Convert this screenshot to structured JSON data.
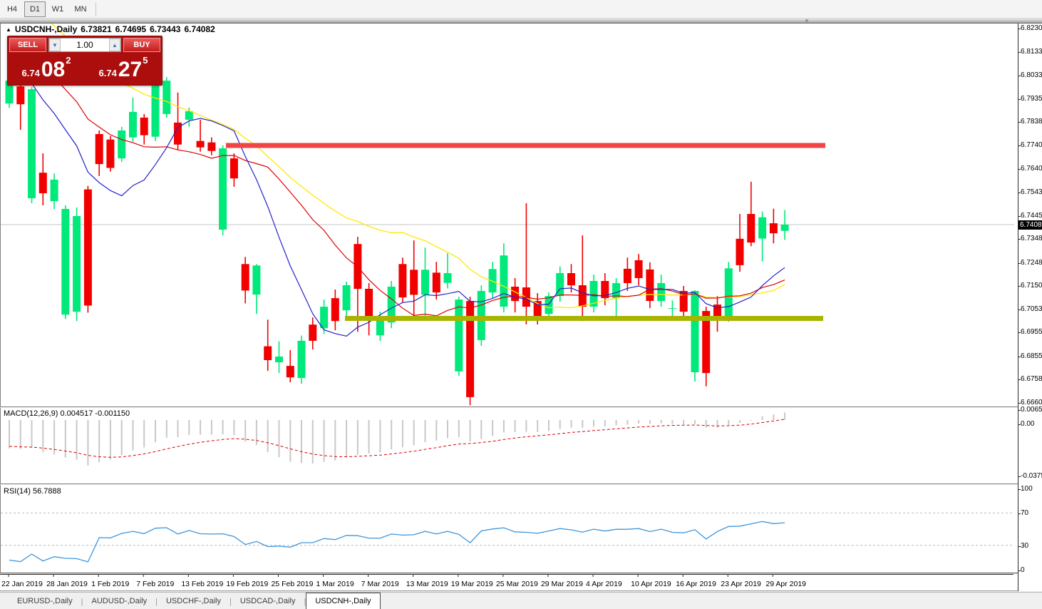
{
  "toolbar": {
    "timeframes": [
      {
        "label": "H4",
        "active": false
      },
      {
        "label": "D1",
        "active": true
      },
      {
        "label": "W1",
        "active": false
      },
      {
        "label": "MN",
        "active": false
      }
    ]
  },
  "chart": {
    "title_symbol": "USDCNH-,Daily",
    "ohlc": {
      "open": "6.73821",
      "high": "6.74695",
      "low": "6.73443",
      "close": "6.74082"
    },
    "current_price": "6.74082",
    "trade_panel": {
      "sell_label": "SELL",
      "buy_label": "BUY",
      "volume": "1.00",
      "sell_price_small": "6.74",
      "sell_price_big": "08",
      "sell_price_sup": "2",
      "buy_price_small": "6.74",
      "buy_price_big": "27",
      "buy_price_sup": "5"
    },
    "price_axis_labels": [
      "6.82305",
      "6.81330",
      "6.80330",
      "6.79355",
      "6.78380",
      "6.77405",
      "6.76405",
      "6.75430",
      "6.74455",
      "6.73480",
      "6.72480",
      "6.71505",
      "6.70530",
      "6.69555",
      "6.68555",
      "6.67580",
      "6.66605"
    ],
    "colors": {
      "candle_up": "#00E97A",
      "candle_down": "#F20000",
      "ma_fast_blue": "#2222CC",
      "ma_mid_red": "#DD0000",
      "ma_slow_yellow": "#FFE800",
      "resistance_band": "#F04545",
      "support_band": "#A8B400",
      "macd_bar": "#C8C8C8",
      "macd_signal": "#DD0000",
      "rsi_line": "#3E96DC",
      "current_price_line": "#C4C4C4"
    }
  },
  "chart_data": {
    "type": "candlestick",
    "symbol": "USDCNH-,Daily",
    "x_tick_labels": [
      "22 Jan 2019",
      "28 Jan 2019",
      "1 Feb 2019",
      "7 Feb 2019",
      "13 Feb 2019",
      "19 Feb 2019",
      "25 Feb 2019",
      "1 Mar 2019",
      "7 Mar 2019",
      "13 Mar 2019",
      "19 Mar 2019",
      "25 Mar 2019",
      "29 Mar 2019",
      "4 Apr 2019",
      "10 Apr 2019",
      "16 Apr 2019",
      "23 Apr 2019",
      "29 Apr 2019"
    ],
    "y_range": [
      6.66605,
      6.82305
    ],
    "levels": {
      "resistance": 6.774,
      "support": 6.7015
    },
    "candles": [
      [
        6.7916,
        6.8018,
        6.7898,
        6.8012
      ],
      [
        6.7988,
        6.7997,
        6.7806,
        6.7913
      ],
      [
        6.7519,
        6.7985,
        6.7498,
        6.7976
      ],
      [
        6.7626,
        6.7707,
        6.7489,
        6.754
      ],
      [
        6.7507,
        6.7623,
        6.7474,
        6.7597
      ],
      [
        6.7031,
        6.7489,
        6.7013,
        6.7474
      ],
      [
        6.7043,
        6.748,
        6.7004,
        6.7444
      ],
      [
        6.7556,
        6.7571,
        6.7039,
        6.7069
      ],
      [
        6.7788,
        6.7803,
        6.7612,
        6.7662
      ],
      [
        6.7765,
        6.778,
        6.7631,
        6.7646
      ],
      [
        6.7686,
        6.7818,
        6.7671,
        6.7803
      ],
      [
        6.7774,
        6.7941,
        6.7756,
        6.7881
      ],
      [
        6.7857,
        6.7872,
        6.7744,
        6.7783
      ],
      [
        6.7777,
        6.8009,
        6.7759,
        6.7991
      ],
      [
        6.7872,
        6.8027,
        6.7857,
        6.8012
      ],
      [
        6.7836,
        6.7962,
        6.7722,
        6.7744
      ],
      [
        6.7848,
        6.7899,
        6.7818,
        6.7884
      ],
      [
        6.7759,
        6.7848,
        6.7714,
        6.7732
      ],
      [
        6.7753,
        6.7774,
        6.7699,
        6.7717
      ],
      [
        6.7387,
        6.774,
        6.7363,
        6.7728
      ],
      [
        6.7686,
        6.7707,
        6.7567,
        6.7602
      ],
      [
        6.7243,
        6.7273,
        6.7078,
        6.7132
      ],
      [
        6.7115,
        6.7243,
        6.7034,
        6.7237
      ],
      [
        6.6898,
        6.701,
        6.6795,
        6.684
      ],
      [
        6.6831,
        6.6919,
        6.6786,
        6.6855
      ],
      [
        6.6816,
        6.6882,
        6.6747,
        6.6768
      ],
      [
        6.6765,
        6.6943,
        6.6741,
        6.6921
      ],
      [
        6.6989,
        6.7019,
        6.6885,
        6.6921
      ],
      [
        6.6974,
        6.7094,
        6.695,
        6.7064
      ],
      [
        6.71,
        6.7136,
        6.6965,
        6.7004
      ],
      [
        6.7049,
        6.7169,
        6.7025,
        6.7154
      ],
      [
        6.7327,
        6.7357,
        6.6959,
        6.7139
      ],
      [
        6.7139,
        6.7163,
        6.6944,
        6.7019
      ],
      [
        6.6944,
        6.7043,
        6.692,
        6.7019
      ],
      [
        6.6998,
        6.7172,
        6.6974,
        6.7148
      ],
      [
        6.7243,
        6.727,
        6.7082,
        6.7103
      ],
      [
        6.7219,
        6.7342,
        6.7024,
        6.7114
      ],
      [
        6.7114,
        6.7312,
        6.7024,
        6.7219
      ],
      [
        6.7207,
        6.7252,
        6.7094,
        6.7124
      ],
      [
        6.7164,
        6.7288,
        6.7141,
        6.7205
      ],
      [
        6.6793,
        6.7106,
        6.6775,
        6.7094
      ],
      [
        6.7088,
        6.7106,
        6.6651,
        6.6685
      ],
      [
        6.6924,
        6.7154,
        6.69,
        6.713
      ],
      [
        6.7124,
        6.7252,
        6.71,
        6.7222
      ],
      [
        6.7064,
        6.733,
        6.704,
        6.7279
      ],
      [
        6.7148,
        6.7184,
        6.704,
        6.7088
      ],
      [
        6.7145,
        6.7498,
        6.699,
        6.7064
      ],
      [
        6.7088,
        6.7121,
        6.699,
        6.7019
      ],
      [
        6.7034,
        6.7124,
        6.701,
        6.7109
      ],
      [
        6.7109,
        6.7233,
        6.7085,
        6.7205
      ],
      [
        6.7205,
        6.7243,
        6.7124,
        6.7154
      ],
      [
        6.7154,
        6.7363,
        6.7004,
        6.7064
      ],
      [
        6.7064,
        6.7199,
        6.704,
        6.7172
      ],
      [
        6.7172,
        6.7205,
        6.707,
        6.71
      ],
      [
        6.71,
        6.7184,
        6.7009,
        6.7163
      ],
      [
        6.7223,
        6.727,
        6.713,
        6.7163
      ],
      [
        6.7259,
        6.7285,
        6.7154,
        6.7184
      ],
      [
        6.722,
        6.725,
        6.7058,
        6.7088
      ],
      [
        6.7088,
        6.7199,
        6.7064,
        6.7163
      ],
      [
        6.7055,
        6.709,
        6.701,
        6.7058
      ],
      [
        6.713,
        6.7151,
        6.7019,
        6.7043
      ],
      [
        6.6789,
        6.7133,
        6.675,
        6.713
      ],
      [
        6.7046,
        6.7064,
        6.673,
        6.6786
      ],
      [
        6.7073,
        6.7109,
        6.6959,
        6.7025
      ],
      [
        6.7025,
        6.7252,
        6.7001,
        6.7225
      ],
      [
        6.7349,
        6.7453,
        6.7211,
        6.7238
      ],
      [
        6.7453,
        6.7588,
        6.7318,
        6.7333
      ],
      [
        6.735,
        6.7463,
        6.7254,
        6.7439
      ],
      [
        6.7414,
        6.7475,
        6.733,
        6.7372
      ],
      [
        6.73821,
        6.74695,
        6.73443,
        6.74082
      ]
    ],
    "indicators": {
      "macd": {
        "label": "MACD(12,26,9)",
        "values_text": "0.004517 -0.001150",
        "axis_labels": [
          "0.006522",
          "0.00",
          "-0.03757"
        ]
      },
      "rsi": {
        "label": "RSI(14)",
        "value_text": "56.7888",
        "axis_labels": [
          "100",
          "70",
          "30",
          "0"
        ],
        "levels": [
          70,
          30
        ]
      }
    }
  },
  "tabs": [
    {
      "label": "EURUSD-,Daily",
      "active": false
    },
    {
      "label": "AUDUSD-,Daily",
      "active": false
    },
    {
      "label": "USDCHF-,Daily",
      "active": false
    },
    {
      "label": "USDCAD-,Daily",
      "active": false
    },
    {
      "label": "USDCNH-,Daily",
      "active": true
    }
  ]
}
